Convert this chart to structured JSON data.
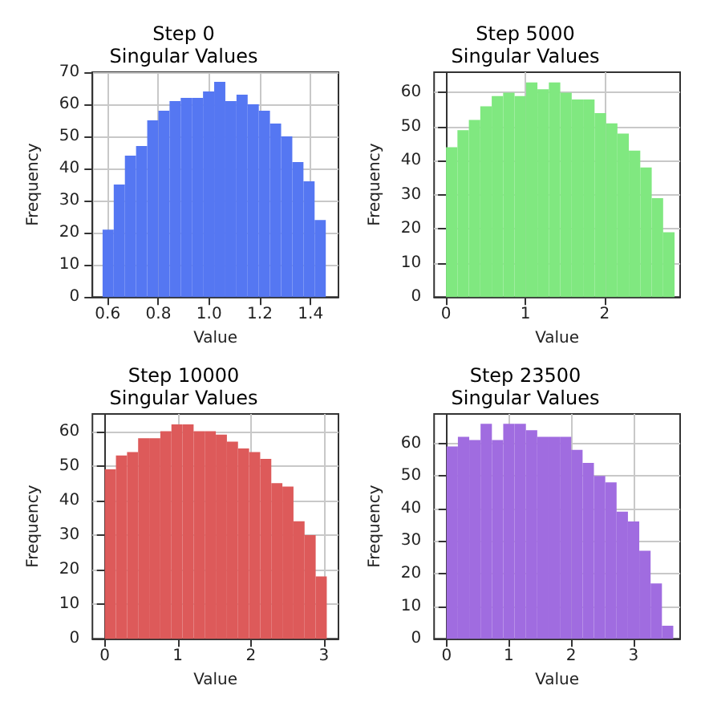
{
  "chart_data": [
    {
      "type": "histogram",
      "title": "Step 0",
      "subtitle": "Singular Values",
      "xlabel": "Value",
      "ylabel": "Frequency",
      "color": "#5577f2",
      "grid": true,
      "bins": [
        0.58,
        0.624,
        0.668,
        0.712,
        0.756,
        0.8,
        0.844,
        0.888,
        0.932,
        0.976,
        1.02,
        1.064,
        1.108,
        1.152,
        1.196,
        1.24,
        1.284,
        1.328,
        1.372,
        1.416,
        1.46
      ],
      "values": [
        21,
        35,
        44,
        47,
        55,
        58,
        61,
        62,
        62,
        64,
        67,
        61,
        63,
        60,
        58,
        54,
        50,
        42,
        36,
        24
      ],
      "xlim": [
        0.54,
        1.51
      ],
      "xticks": [
        0.6,
        0.8,
        {
          "value": 1,
          "label": "1.0"
        },
        1.2,
        1.4
      ],
      "ylim": [
        0,
        70
      ],
      "yticks": [
        0,
        10,
        20,
        30,
        40,
        50,
        60,
        70
      ]
    },
    {
      "type": "histogram",
      "title": "Step 5000",
      "subtitle": "Singular Values",
      "xlabel": "Value",
      "ylabel": "Frequency",
      "color": "#80e880",
      "grid": true,
      "bins": [
        0,
        0.144,
        0.288,
        0.432,
        0.576,
        0.72,
        0.864,
        1.008,
        1.152,
        1.296,
        1.44,
        1.584,
        1.728,
        1.872,
        2.016,
        2.16,
        2.304,
        2.448,
        2.592,
        2.736,
        2.88
      ],
      "values": [
        44,
        49,
        52,
        56,
        59,
        60,
        59,
        63,
        61,
        63,
        60,
        58,
        58,
        54,
        51,
        48,
        43,
        38,
        29,
        19
      ],
      "xlim": [
        -0.15,
        2.95
      ],
      "xticks": [
        0,
        1,
        2
      ],
      "ylim": [
        0,
        66
      ],
      "yticks": [
        0,
        10,
        20,
        30,
        40,
        50,
        60
      ]
    },
    {
      "type": "histogram",
      "title": "Step 10000",
      "subtitle": "Singular Values",
      "xlabel": "Value",
      "ylabel": "Frequency",
      "color": "#dd5a5a",
      "grid": true,
      "bins": [
        0,
        0.152,
        0.304,
        0.456,
        0.608,
        0.76,
        0.912,
        1.064,
        1.216,
        1.368,
        1.52,
        1.672,
        1.824,
        1.976,
        2.128,
        2.28,
        2.432,
        2.584,
        2.736,
        2.888,
        3.04
      ],
      "values": [
        49,
        53,
        54,
        58,
        58,
        60,
        62,
        62,
        60,
        60,
        59,
        57,
        55,
        54,
        52,
        45,
        44,
        34,
        30,
        18
      ],
      "xlim": [
        -0.17,
        3.2
      ],
      "xticks": [
        0,
        1,
        2,
        3
      ],
      "ylim": [
        0,
        65
      ],
      "yticks": [
        0,
        10,
        20,
        30,
        40,
        50,
        60
      ]
    },
    {
      "type": "histogram",
      "title": "Step 23500",
      "subtitle": "Singular Values",
      "xlabel": "Value",
      "ylabel": "Frequency",
      "color": "#a06ce0",
      "grid": true,
      "bins": [
        0,
        0.182,
        0.364,
        0.546,
        0.728,
        0.91,
        1.092,
        1.274,
        1.456,
        1.638,
        1.82,
        2.002,
        2.184,
        2.366,
        2.548,
        2.73,
        2.912,
        3.094,
        3.276,
        3.458,
        3.64
      ],
      "values": [
        59,
        62,
        61,
        66,
        61,
        66,
        66,
        64,
        62,
        62,
        62,
        58,
        54,
        50,
        48,
        39,
        36,
        27,
        17,
        4
      ],
      "xlim": [
        -0.2,
        3.75
      ],
      "xticks": [
        0,
        1,
        2,
        3
      ],
      "ylim": [
        0,
        69
      ],
      "yticks": [
        0,
        10,
        20,
        30,
        40,
        50,
        60
      ]
    }
  ]
}
